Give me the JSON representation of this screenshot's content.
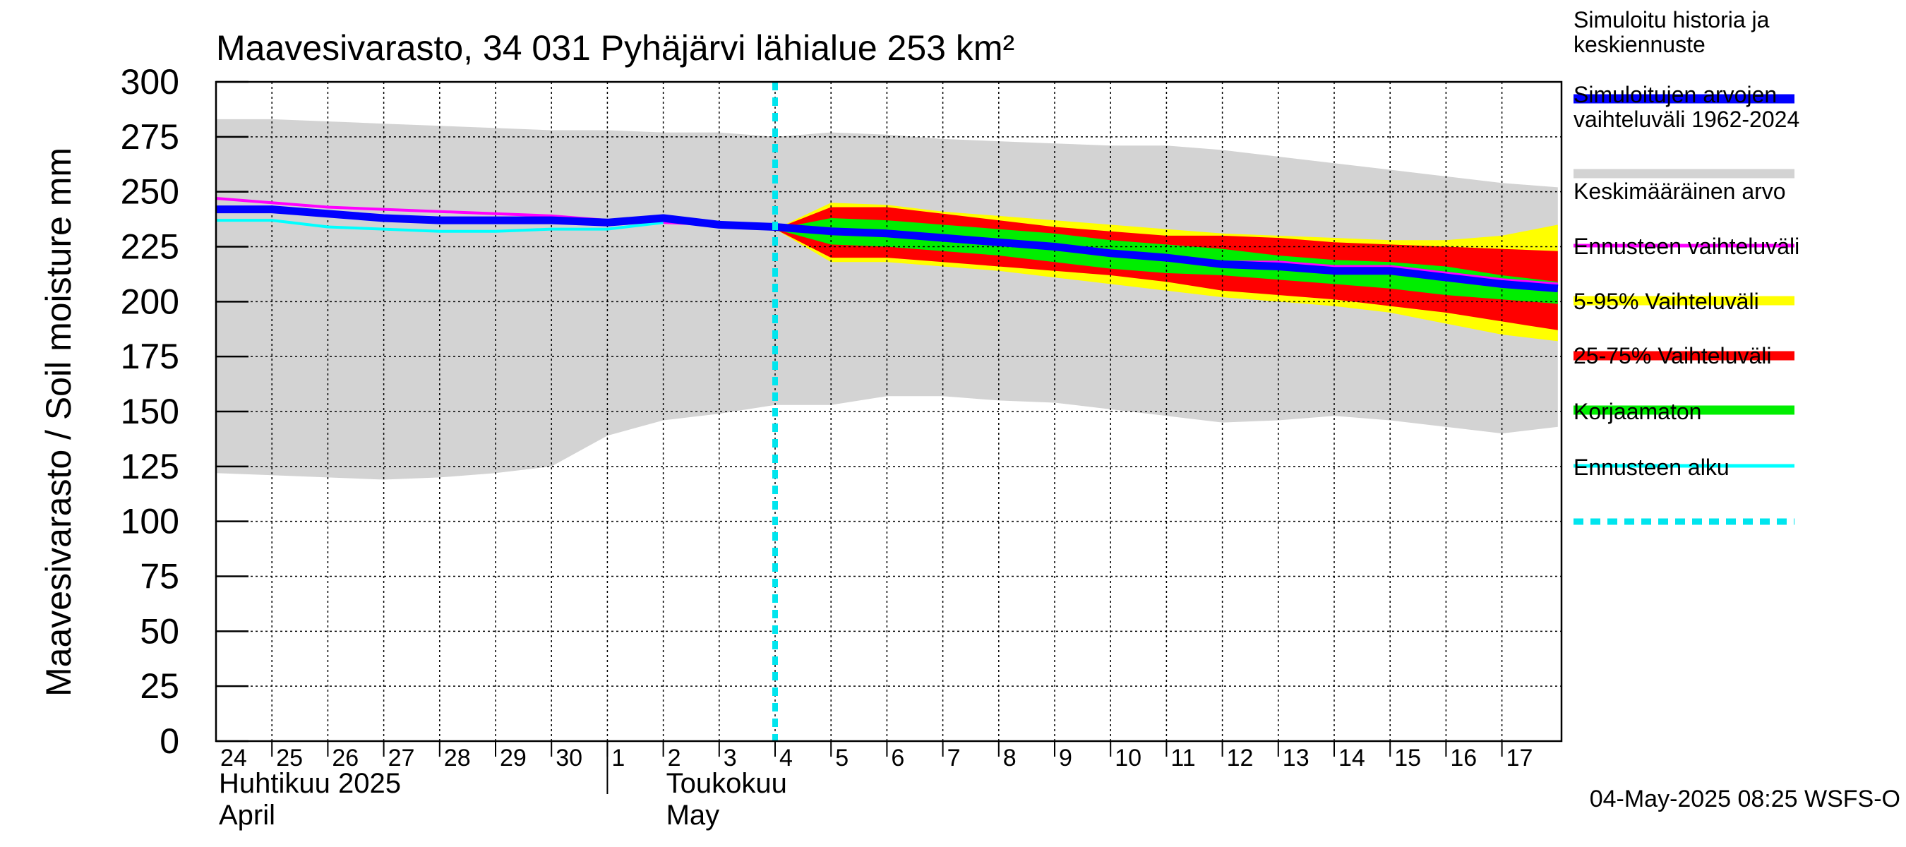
{
  "chart_data": {
    "type": "area",
    "title": "Maavesivarasto, 34 031 Pyhäjärvi lähialue 253 km²",
    "ylabel": "Maavesivarasto / Soil moisture   mm",
    "ylim": [
      0,
      300
    ],
    "yticks": [
      0,
      25,
      50,
      75,
      100,
      125,
      150,
      175,
      200,
      225,
      250,
      275,
      300
    ],
    "xlim": [
      "2025-04-24",
      "2025-05-17T23:00"
    ],
    "x_days": [
      "24",
      "25",
      "26",
      "27",
      "28",
      "29",
      "30",
      "1",
      "2",
      "3",
      "4",
      "5",
      "6",
      "7",
      "8",
      "9",
      "10",
      "11",
      "12",
      "13",
      "14",
      "15",
      "16",
      "17"
    ],
    "month_labels": [
      {
        "fi": "Huhtikuu  2025",
        "en": "April"
      },
      {
        "fi": "Toukokuu",
        "en": "May"
      }
    ],
    "grid": true,
    "legend_position": "right",
    "footer": "04-May-2025 08:25 WSFS-O",
    "forecast_start": "2025-05-04",
    "x": [
      "2025-04-24",
      "2025-04-25",
      "2025-04-26",
      "2025-04-27",
      "2025-04-28",
      "2025-04-29",
      "2025-04-30",
      "2025-05-01",
      "2025-05-02",
      "2025-05-03",
      "2025-05-04",
      "2025-05-05",
      "2025-05-06",
      "2025-05-07",
      "2025-05-08",
      "2025-05-09",
      "2025-05-10",
      "2025-05-11",
      "2025-05-12",
      "2025-05-13",
      "2025-05-14",
      "2025-05-15",
      "2025-05-16",
      "2025-05-17",
      "2025-05-18"
    ],
    "legend": [
      {
        "label": "Simuloitu historia ja keskiennuste",
        "color": "#0000ff",
        "style": "thick"
      },
      {
        "label": "Simuloitujen arvojen vaihteluväli 1962-2024",
        "color": "#d3d3d3",
        "style": "thick"
      },
      {
        "label": "Keskimääräinen arvo",
        "color": "#ff00ff",
        "style": "thin"
      },
      {
        "label": "Ennusteen vaihteluväli",
        "color": "#ffff00",
        "style": "thick"
      },
      {
        "label": "5-95% Vaihteluväli",
        "color": "#ff0000",
        "style": "thick"
      },
      {
        "label": "25-75% Vaihteluväli",
        "color": "#00ee00",
        "style": "thick"
      },
      {
        "label": "Korjaamaton",
        "color": "#00ffff",
        "style": "thin"
      },
      {
        "label": "Ennusteen alku",
        "color": "#00e5ee",
        "style": "dashed"
      }
    ],
    "series": [
      {
        "name": "Simuloitujen arvojen vaihteluväli 1962-2024",
        "role": "range",
        "color": "#d3d3d3",
        "low": [
          122,
          121,
          120,
          119,
          120,
          122,
          125,
          139,
          146,
          149,
          153,
          153,
          157,
          157,
          155,
          154,
          151,
          148,
          145,
          146,
          148,
          146,
          143,
          140,
          143
        ],
        "high": [
          283,
          283,
          282,
          281,
          280,
          279,
          278,
          278,
          277,
          277,
          275,
          277,
          276,
          274,
          273,
          272,
          271,
          271,
          269,
          266,
          263,
          260,
          257,
          254,
          252
        ]
      },
      {
        "name": "Ennusteen vaihteluväli",
        "role": "range",
        "color": "#ffff00",
        "low": [
          null,
          null,
          null,
          null,
          null,
          null,
          null,
          null,
          null,
          null,
          233,
          218,
          218,
          216,
          214,
          211,
          208,
          205,
          202,
          200,
          198,
          195,
          190,
          185,
          182
        ],
        "high": [
          null,
          null,
          null,
          null,
          null,
          null,
          null,
          null,
          null,
          null,
          233,
          245,
          244,
          241,
          239,
          237,
          235,
          233,
          231,
          230,
          229,
          228,
          228,
          230,
          235
        ]
      },
      {
        "name": "5-95% Vaihteluväli",
        "role": "range",
        "color": "#ff0000",
        "low": [
          null,
          null,
          null,
          null,
          null,
          null,
          null,
          null,
          null,
          null,
          233,
          220,
          220,
          218,
          216,
          214,
          212,
          209,
          205,
          203,
          201,
          198,
          195,
          191,
          187
        ],
        "high": [
          null,
          null,
          null,
          null,
          null,
          null,
          null,
          null,
          null,
          null,
          233,
          243,
          243,
          240,
          237,
          234,
          232,
          230,
          230,
          229,
          227,
          226,
          225,
          224,
          223
        ]
      },
      {
        "name": "25-75% Vaihteluväli",
        "role": "range",
        "color": "#00ee00",
        "low": [
          null,
          null,
          null,
          null,
          null,
          null,
          null,
          null,
          null,
          null,
          233,
          226,
          225,
          223,
          221,
          218,
          215,
          213,
          212,
          210,
          208,
          206,
          203,
          201,
          199
        ],
        "high": [
          null,
          null,
          null,
          null,
          null,
          null,
          null,
          null,
          null,
          null,
          233,
          238,
          237,
          235,
          233,
          231,
          228,
          226,
          224,
          221,
          219,
          218,
          216,
          212,
          209
        ]
      },
      {
        "name": "Keskimääräinen arvo",
        "role": "line",
        "color": "#ff00ff",
        "width": 4,
        "values": [
          247,
          245,
          243,
          242,
          241,
          240,
          239,
          237,
          236,
          235,
          234,
          233,
          232,
          230,
          228,
          226,
          223,
          221,
          218,
          218,
          216,
          216,
          213,
          210,
          208
        ]
      },
      {
        "name": "Korjaamaton",
        "role": "line",
        "color": "#00ffff",
        "width": 4,
        "values": [
          237,
          237,
          234,
          233,
          232,
          232,
          233,
          233,
          236,
          null,
          null,
          null,
          null,
          null,
          null,
          null,
          null,
          null,
          null,
          null,
          null,
          null,
          null,
          null,
          null
        ]
      },
      {
        "name": "Simuloitu historia ja keskiennuste",
        "role": "line",
        "color": "#0000ff",
        "width": 11,
        "values": [
          242,
          242,
          240,
          238,
          237,
          237,
          237,
          236,
          238,
          235,
          234,
          232,
          231,
          229,
          227,
          225,
          222,
          220,
          217,
          216,
          214,
          214,
          211,
          208,
          206
        ]
      }
    ]
  }
}
